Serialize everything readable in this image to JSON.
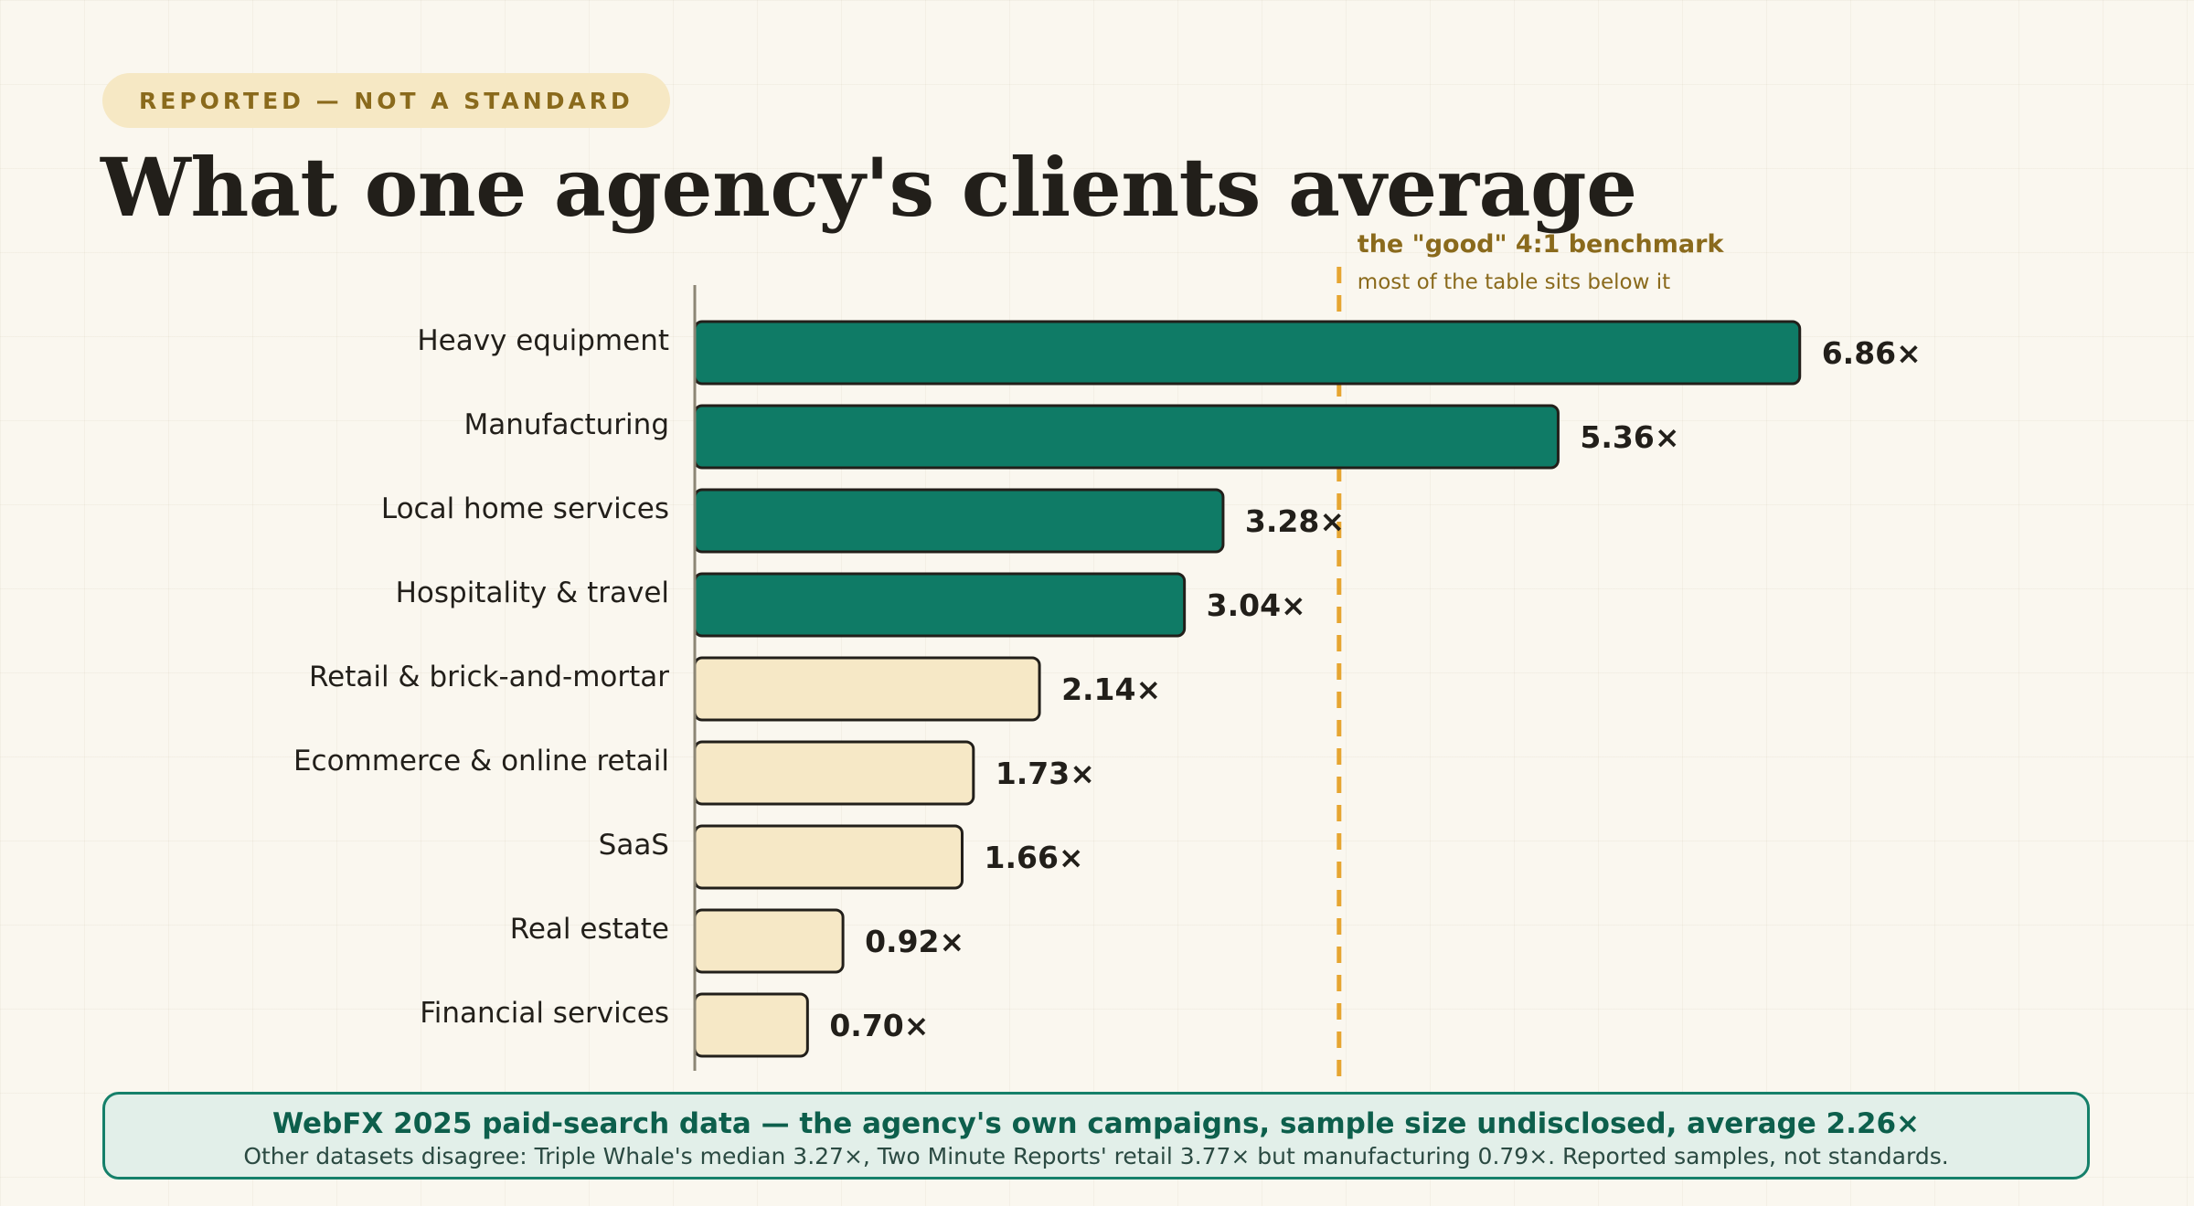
{
  "badge": "REPORTED — NOT A STANDARD",
  "title": "What one agency's clients average",
  "chart_data": {
    "type": "bar",
    "orientation": "horizontal",
    "categories": [
      "Heavy equipment",
      "Manufacturing",
      "Local home services",
      "Hospitality & travel",
      "Retail & brick-and-mortar",
      "Ecommerce & online retail",
      "SaaS",
      "Real estate",
      "Financial services"
    ],
    "values": [
      6.86,
      5.36,
      3.28,
      3.04,
      2.14,
      1.73,
      1.66,
      0.92,
      0.7
    ],
    "value_labels": [
      "6.86×",
      "5.36×",
      "3.28×",
      "3.04×",
      "2.14×",
      "1.73×",
      "1.66×",
      "0.92×",
      "0.70×"
    ],
    "xlim": [
      0,
      7.5
    ],
    "grid": false,
    "colors": {
      "high": "#0f7b66",
      "low": "#f6e8c6",
      "outline": "#221f1a",
      "benchmark": "#e6a531"
    },
    "highlight_threshold": 3,
    "benchmark": {
      "value": 4,
      "label": "the \"good\" 4:1 benchmark",
      "note": "most of the table sits below it"
    }
  },
  "footer": {
    "headline": "WebFX 2025 paid-search data — the agency's own campaigns, sample size undisclosed, average 2.26×",
    "note": "Other datasets disagree: Triple Whale's median 3.27×, Two Minute Reports' retail 3.77× but manufacturing 0.79×. Reported samples, not standards."
  }
}
